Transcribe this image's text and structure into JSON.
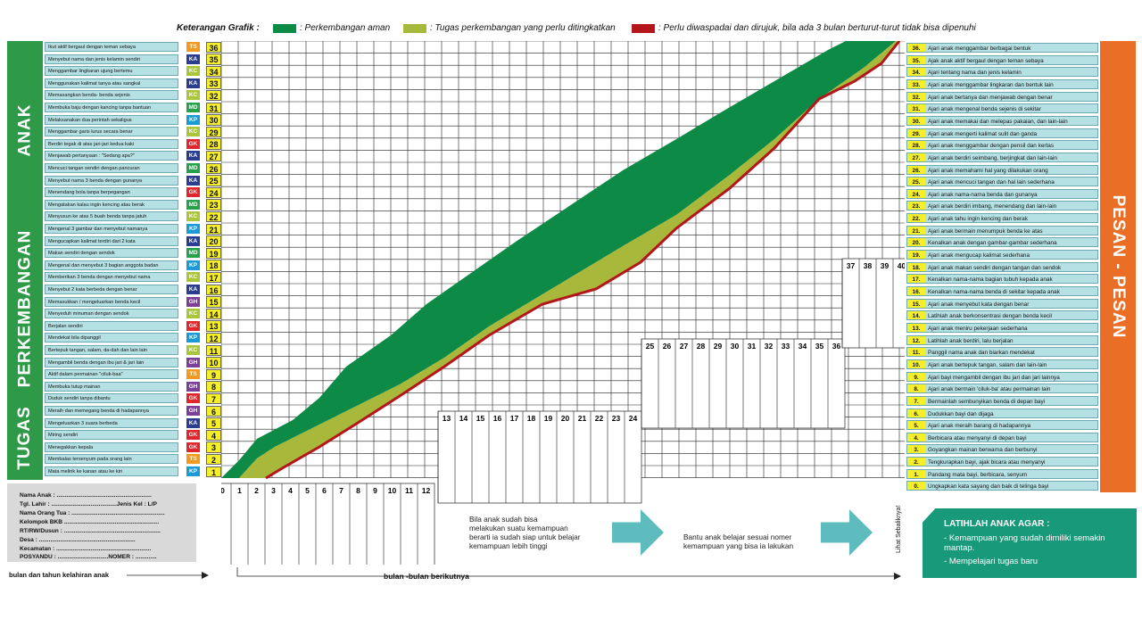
{
  "legend": {
    "title": "Keterangan Grafik :",
    "items": [
      {
        "color": "#0c8a46",
        "label": ": Perkembangan aman"
      },
      {
        "color": "#a8b83a",
        "label": ": Tugas perkembangan yang perlu ditingkatkan"
      },
      {
        "color": "#b3161b",
        "label": ": Perlu diwaspadai dan dirujuk, bila ada 3 bulan berturut-turut tidak bisa dipenuhi"
      }
    ]
  },
  "left_banner": [
    "ANAK",
    "PERKEMBANGAN",
    "TUGAS"
  ],
  "right_banner": "PESAN - PESAN",
  "code_colors": {
    "TS": "#f29a1f",
    "KA": "#2a3e8f",
    "KC": "#a9c53a",
    "MD": "#26a04a",
    "KP": "#1b9ad6",
    "GK": "#e0262a",
    "GH": "#7b3f98"
  },
  "tasks": [
    {
      "n": 36,
      "code": "TS",
      "text": "Ikut aktif bergaul dengan teman sebaya"
    },
    {
      "n": 35,
      "code": "KA",
      "text": "Menyebut nama dan jenis kelamin sendiri"
    },
    {
      "n": 34,
      "code": "KC",
      "text": "Menggambar lingkaran ujung bertemu"
    },
    {
      "n": 33,
      "code": "KA",
      "text": "Menggunakan kalimat tanya atau sangkal"
    },
    {
      "n": 32,
      "code": "KC",
      "text": "Memasangkan benda- benda sejenis"
    },
    {
      "n": 31,
      "code": "MD",
      "text": "Membuka baju dengan kancing tanpa bantuan"
    },
    {
      "n": 30,
      "code": "KP",
      "text": "Melaksanakan dua perintah sekaligus"
    },
    {
      "n": 29,
      "code": "KC",
      "text": "Menggambar garis lurus secara benar"
    },
    {
      "n": 28,
      "code": "GK",
      "text": "Berdiri tegak di atas jari-jari kedua kaki"
    },
    {
      "n": 27,
      "code": "KA",
      "text": "Menjawab pertanyaan : \"Sedang apa?\""
    },
    {
      "n": 26,
      "code": "MD",
      "text": "Mencuci tangan sendiri dengan pancuran"
    },
    {
      "n": 25,
      "code": "KA",
      "text": "Menyebut nama 3 benda dengan gunanya"
    },
    {
      "n": 24,
      "code": "GK",
      "text": "Menendang bola tanpa berpegangan"
    },
    {
      "n": 23,
      "code": "MD",
      "text": "Mengatakan kalau ingin kencing atau berak"
    },
    {
      "n": 22,
      "code": "KC",
      "text": "Menyusun ke atas 5 buah benda tanpa jatuh"
    },
    {
      "n": 21,
      "code": "KP",
      "text": "Mengenal 3 gambar dan menyebut namanya"
    },
    {
      "n": 20,
      "code": "KA",
      "text": "Mengucapkan kalimat terdiri dari 2 kata"
    },
    {
      "n": 19,
      "code": "MD",
      "text": "Makan sendiri dengan sendok"
    },
    {
      "n": 18,
      "code": "KP",
      "text": "Mengenal dan menyebut 3 bagian anggota badan"
    },
    {
      "n": 17,
      "code": "KC",
      "text": "Memberikan 3 benda dengan menyebut nama"
    },
    {
      "n": 16,
      "code": "KA",
      "text": "Menyebut 2 kata berbeda dengan benar"
    },
    {
      "n": 15,
      "code": "GH",
      "text": "Memasukkan / mengeluarkan benda kecil"
    },
    {
      "n": 14,
      "code": "KC",
      "text": "Menyeduh minuman dengan sendok"
    },
    {
      "n": 13,
      "code": "GK",
      "text": "Berjalan sendiri"
    },
    {
      "n": 12,
      "code": "KP",
      "text": "Mendekat bila dipanggil"
    },
    {
      "n": 11,
      "code": "KC",
      "text": "Bertepuk tangan, salam, da-dah dan lain lain"
    },
    {
      "n": 10,
      "code": "GH",
      "text": "Mengambil benda dengan ibu jari & jari lain"
    },
    {
      "n": 9,
      "code": "TS",
      "text": "Aktif dalam permainan \"ciluk-baa\""
    },
    {
      "n": 8,
      "code": "GH",
      "text": "Membuka tutup mainan"
    },
    {
      "n": 7,
      "code": "GK",
      "text": "Duduk sendiri tanpa dibantu"
    },
    {
      "n": 6,
      "code": "GH",
      "text": "Meraih dan memegang benda di hadapannya"
    },
    {
      "n": 5,
      "code": "KA",
      "text": "Mengeluarkan 3 suara berbeda"
    },
    {
      "n": 4,
      "code": "GK",
      "text": "Miring sendiri"
    },
    {
      "n": 3,
      "code": "GK",
      "text": "Menegakkan kepala"
    },
    {
      "n": 2,
      "code": "TS",
      "text": "Membalas tersenyum pada orang lain"
    },
    {
      "n": 1,
      "code": "KP",
      "text": "Mata melirik ke kanan atau ke kiri"
    }
  ],
  "messages": [
    {
      "n": "36.",
      "text": "Ajari anak menggambar berbagai bentuk"
    },
    {
      "n": "35.",
      "text": "Ajak anak aktif bergaul dengan teman sebaya"
    },
    {
      "n": "34.",
      "text": "Ajari tentang nama dan jenis kelamin"
    },
    {
      "n": "33.",
      "text": "Ajari anak menggambar lingkaran dan bentuk lain"
    },
    {
      "n": "32.",
      "text": "Ajari anak bertanya dan menjawab dengan benar"
    },
    {
      "n": "31.",
      "text": "Ajari anak mengenal benda sejenis di sekitar"
    },
    {
      "n": "30.",
      "text": "Ajari anak memakai dan melepas pakaian, dan lain-lain"
    },
    {
      "n": "29.",
      "text": "Ajari anak mengerti kalimat sulit dan ganda"
    },
    {
      "n": "28.",
      "text": "Ajari anak menggambar dengan pensil dan kertas"
    },
    {
      "n": "27.",
      "text": "Ajari anak berdiri seimbang, berjingkat dan lain-lain"
    },
    {
      "n": "26.",
      "text": "Ajari anak memahami hal yang dilakukan orang"
    },
    {
      "n": "25.",
      "text": "Ajari anak  mencuci tangan dan hal lain sederhana"
    },
    {
      "n": "24.",
      "text": "Ajari anak nama-nama benda dan gunanya"
    },
    {
      "n": "23.",
      "text": "Ajari anak berdiri imbang, menendang dan lain-lain"
    },
    {
      "n": "22.",
      "text": "Ajari anak tahu ingin kencing dan berak"
    },
    {
      "n": "21.",
      "text": "Ajari anak bermain menumpuk benda ke atas"
    },
    {
      "n": "20.",
      "text": "Kenalkan anak dengan gambar-gambar sederhana"
    },
    {
      "n": "19.",
      "text": "Ajari anak mengucap kalimat sederhana"
    },
    {
      "n": "18.",
      "text": "Ajari anak makan sendiri dengan tangan dan sendok"
    },
    {
      "n": "17.",
      "text": "Kenalkan nama-nama bagian tubuh kepada anak"
    },
    {
      "n": "16.",
      "text": "Kenalkan nama-nama benda di sekitar kepada anak"
    },
    {
      "n": "15.",
      "text": "Ajari anak menyebut kata dengan benar"
    },
    {
      "n": "14.",
      "text": "Latihlah anak berkonsentrasi dengan benda kecil"
    },
    {
      "n": "13.",
      "text": "Ajari anak meniru pekerjaan sederhana"
    },
    {
      "n": "12.",
      "text": "Latihlah anak berdiri, lalu berjalan"
    },
    {
      "n": "11.",
      "text": "Panggil nama anak dan biarkan mendekat"
    },
    {
      "n": "10.",
      "text": "Ajari anak bertepuk tangan, salam dan lain-lain"
    },
    {
      "n": "9.",
      "text": "Ajari bayi mengambil dengan ibu jari dan jari lainnya"
    },
    {
      "n": "8.",
      "text": "Ajari anak bermain 'ciluk-ba' atau permainan lain"
    },
    {
      "n": "7.",
      "text": "Bermainlah sembunyikan benda di depan bayi"
    },
    {
      "n": "6.",
      "text": "Dudukkan bayi dan dijaga"
    },
    {
      "n": "5.",
      "text": "Ajari anak meraih barang di hadapannya"
    },
    {
      "n": "4.",
      "text": "Berbicara atau menyanyi di depan bayi"
    },
    {
      "n": "3.",
      "text": "Goyangkan mainan berwarna dan berbunyi"
    },
    {
      "n": "2.",
      "text": "Tengkurapkan bayi, ajak bicara atau menyanyi"
    },
    {
      "n": "1.",
      "text": "Pandang mata bayi, berbicara, senyum"
    },
    {
      "n": "0.",
      "text": "Ungkapkan kata sayang dan baik di telinga bayi"
    }
  ],
  "months": {
    "g1": [
      "0",
      "1",
      "2",
      "3",
      "4",
      "5",
      "6",
      "7",
      "8",
      "9",
      "10",
      "11",
      "12"
    ],
    "g2": [
      "13",
      "14",
      "15",
      "16",
      "17",
      "18",
      "19",
      "20",
      "21",
      "22",
      "23",
      "24"
    ],
    "g3": [
      "25",
      "26",
      "27",
      "28",
      "29",
      "30",
      "31",
      "32",
      "33",
      "34",
      "35",
      "36"
    ],
    "g4": [
      "37",
      "38",
      "39",
      "40"
    ]
  },
  "info": {
    "name": "Nama Anak        :  ..........................................................",
    "birth": "Tgl. Lahir          : ........................................Jenis Kel : L/P",
    "parent": "Nama Orang Tua :  .........................................................",
    "group": "Kelompok BKB      ..........................................................",
    "rt": "RT/RW/Dusun      :  ...........................................................",
    "village": "Desa                 :  ...........................................................",
    "district": "Kecamatan         :  ..........................................................",
    "posyandu": "POSYANDU         : ...............................NOMER : .............",
    "birth_note": "bulan dan tahun kelahiran  anak",
    "next_months": "bulan -bulan berikutnya"
  },
  "notes": {
    "note1": [
      "Bila anak sudah bisa",
      "melakukan suatu kemampuan",
      "berarti ia sudah siap untuk belajar",
      "kemampuan lebih tinggi"
    ],
    "note2": [
      "Bantu anak belajar sesuai nomer",
      "kemampuan yang bisa ia lakukan"
    ],
    "see_back": "Lihat Sebaliknya!"
  },
  "train": {
    "title": "LATIHLAH ANAK AGAR :",
    "items": [
      "Kemampuan yang sudah dimiliki semakin mantap.",
      "Mempelajari tugas baru"
    ]
  }
}
